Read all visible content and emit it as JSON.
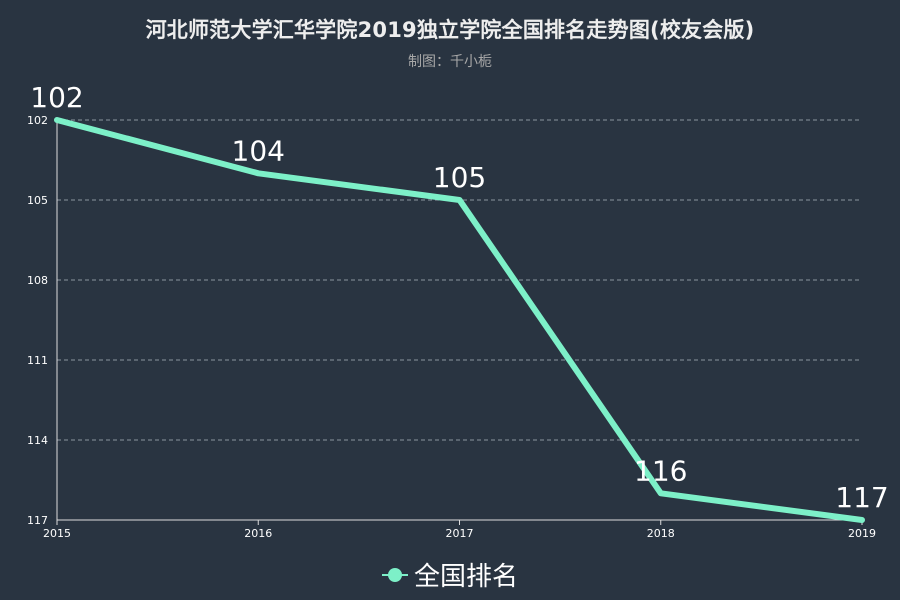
{
  "chart_data": {
    "type": "line",
    "title": "河北师范大学汇华学院2019独立学院全国排名走势图(校友会版)",
    "subtitle": "制图：千小栀",
    "x": [
      "2015",
      "2016",
      "2017",
      "2018",
      "2019"
    ],
    "series": [
      {
        "name": "全国排名",
        "values": [
          102,
          104,
          105,
          116,
          117
        ]
      }
    ],
    "y_ticks": [
      "102",
      "105",
      "108",
      "111",
      "114",
      "117"
    ],
    "ylim": [
      102,
      117
    ],
    "y_inverted": true,
    "grid": true,
    "grid_style": "dashed",
    "legend_position": "bottom-center",
    "show_data_labels": true,
    "colors": {
      "background": "#293441",
      "series": "#7df0c8",
      "title": "#eeeeee",
      "subtitle": "#a8a8a8",
      "text": "#ffffff"
    }
  }
}
